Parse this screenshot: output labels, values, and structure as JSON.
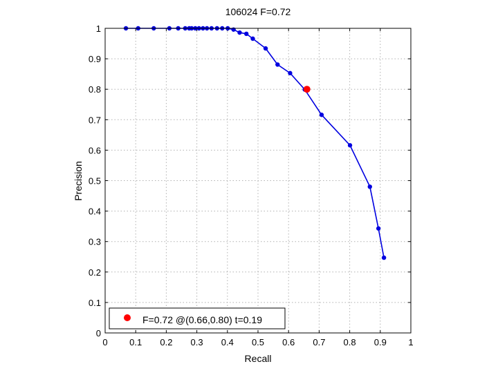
{
  "chart_data": {
    "type": "line",
    "title": "106024 F=0.72",
    "xlabel": "Recall",
    "ylabel": "Precision",
    "xlim": [
      0,
      1
    ],
    "ylim": [
      0,
      1
    ],
    "xticks": [
      0,
      0.1,
      0.2,
      0.3,
      0.4,
      0.5,
      0.6,
      0.7,
      0.8,
      0.9,
      1
    ],
    "yticks": [
      0,
      0.1,
      0.2,
      0.3,
      0.4,
      0.5,
      0.6,
      0.7,
      0.8,
      0.9,
      1
    ],
    "xtick_labels": [
      "0",
      "0.1",
      "0.2",
      "0.3",
      "0.4",
      "0.5",
      "0.6",
      "0.7",
      "0.8",
      "0.9",
      "1"
    ],
    "ytick_labels": [
      "0",
      "0.1",
      "0.2",
      "0.3",
      "0.4",
      "0.5",
      "0.6",
      "0.7",
      "0.8",
      "0.9",
      "1"
    ],
    "grid": true,
    "series": [
      {
        "color": "#0000e0",
        "x": [
          0.068,
          0.108,
          0.159,
          0.21,
          0.239,
          0.262,
          0.275,
          0.283,
          0.295,
          0.307,
          0.32,
          0.333,
          0.348,
          0.366,
          0.383,
          0.401,
          0.42,
          0.44,
          0.462,
          0.483,
          0.525,
          0.564,
          0.605,
          0.653,
          0.708,
          0.801,
          0.866,
          0.894,
          0.912
        ],
        "y": [
          1.0,
          1.0,
          1.0,
          1.0,
          1.0,
          1.0,
          1.0,
          1.0,
          1.0,
          1.0,
          1.0,
          1.0,
          1.0,
          1.0,
          1.0,
          1.0,
          0.996,
          0.986,
          0.982,
          0.966,
          0.934,
          0.881,
          0.853,
          0.799,
          0.716,
          0.616,
          0.48,
          0.343,
          0.247
        ]
      }
    ],
    "highlight": {
      "x": 0.66,
      "y": 0.8,
      "color": "#ff0000"
    },
    "legend": {
      "location": "bottom-left",
      "text": "F=0.72 @(0.66,0.80) t=0.19"
    }
  }
}
